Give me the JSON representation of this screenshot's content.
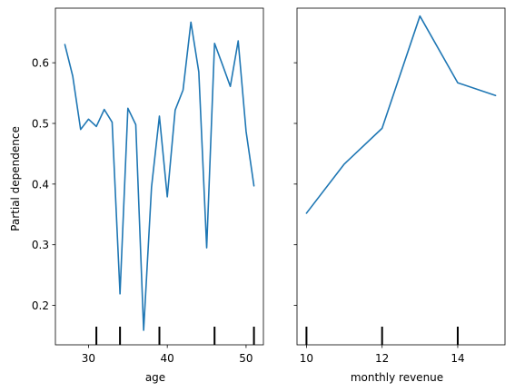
{
  "chart_data": [
    {
      "type": "line",
      "title": "",
      "xlabel": "age",
      "ylabel": "Partial dependence",
      "xlim": [
        25.8,
        52.2
      ],
      "ylim": [
        0.135,
        0.69
      ],
      "xticks": [
        30,
        40,
        50
      ],
      "xtick_labels": [
        "30",
        "40",
        "50"
      ],
      "yticks": [
        0.2,
        0.3,
        0.4,
        0.5,
        0.6
      ],
      "ytick_labels": [
        "0.2",
        "0.3",
        "0.4",
        "0.5",
        "0.6"
      ],
      "deciles": [
        31,
        34,
        39,
        46,
        51
      ],
      "color": "#1f77b4",
      "x": [
        27,
        28,
        29,
        30,
        31,
        32,
        33,
        34,
        35,
        36,
        37,
        38,
        39,
        40,
        41,
        42,
        43,
        44,
        45,
        46,
        47,
        48,
        49,
        50,
        51
      ],
      "y": [
        0.63,
        0.578,
        0.49,
        0.507,
        0.495,
        0.523,
        0.502,
        0.219,
        0.525,
        0.498,
        0.159,
        0.395,
        0.512,
        0.379,
        0.522,
        0.555,
        0.667,
        0.585,
        0.295,
        0.632,
        0.597,
        0.561,
        0.636,
        0.487,
        0.397
      ]
    },
    {
      "type": "line",
      "title": "",
      "xlabel": "monthly revenue",
      "ylabel": "",
      "xlim": [
        9.75,
        15.25
      ],
      "ylim": [
        0.135,
        0.69
      ],
      "xticks": [
        10,
        12,
        14
      ],
      "xtick_labels": [
        "10",
        "12",
        "14"
      ],
      "yticks": [
        0.2,
        0.3,
        0.4,
        0.5,
        0.6
      ],
      "deciles": [
        10,
        12,
        14
      ],
      "color": "#1f77b4",
      "x": [
        10,
        11,
        12,
        13,
        14,
        15
      ],
      "y": [
        0.352,
        0.433,
        0.492,
        0.677,
        0.567,
        0.546
      ]
    }
  ]
}
